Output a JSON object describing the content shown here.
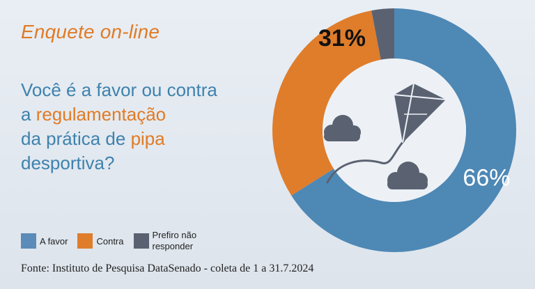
{
  "title": "Enquete on-line",
  "question": {
    "p1": "Você é a favor ou contra",
    "p2": "a ",
    "p3": "regulamentação",
    "p4": "da prática de ",
    "p5": "pipa",
    "p6": "desportiva?"
  },
  "legend": [
    {
      "label": "A favor",
      "color": "#5b8bb8"
    },
    {
      "label": "Contra",
      "color": "#df7d2b"
    },
    {
      "label": "Prefiro não responder",
      "color": "#5a6272"
    }
  ],
  "source": "Fonte: Instituto de Pesquisa DataSenado - coleta de 1 a 31.7.2024",
  "chart_data": {
    "type": "pie",
    "categories": [
      "A favor",
      "Contra",
      "Prefiro não responder"
    ],
    "values": [
      66,
      31,
      3
    ],
    "labels": [
      "66%",
      "31%",
      ""
    ],
    "colors": [
      "#4e88b5",
      "#df7d2b",
      "#5a6272"
    ]
  },
  "icons": [
    "kite-icon",
    "cloud-icon"
  ]
}
